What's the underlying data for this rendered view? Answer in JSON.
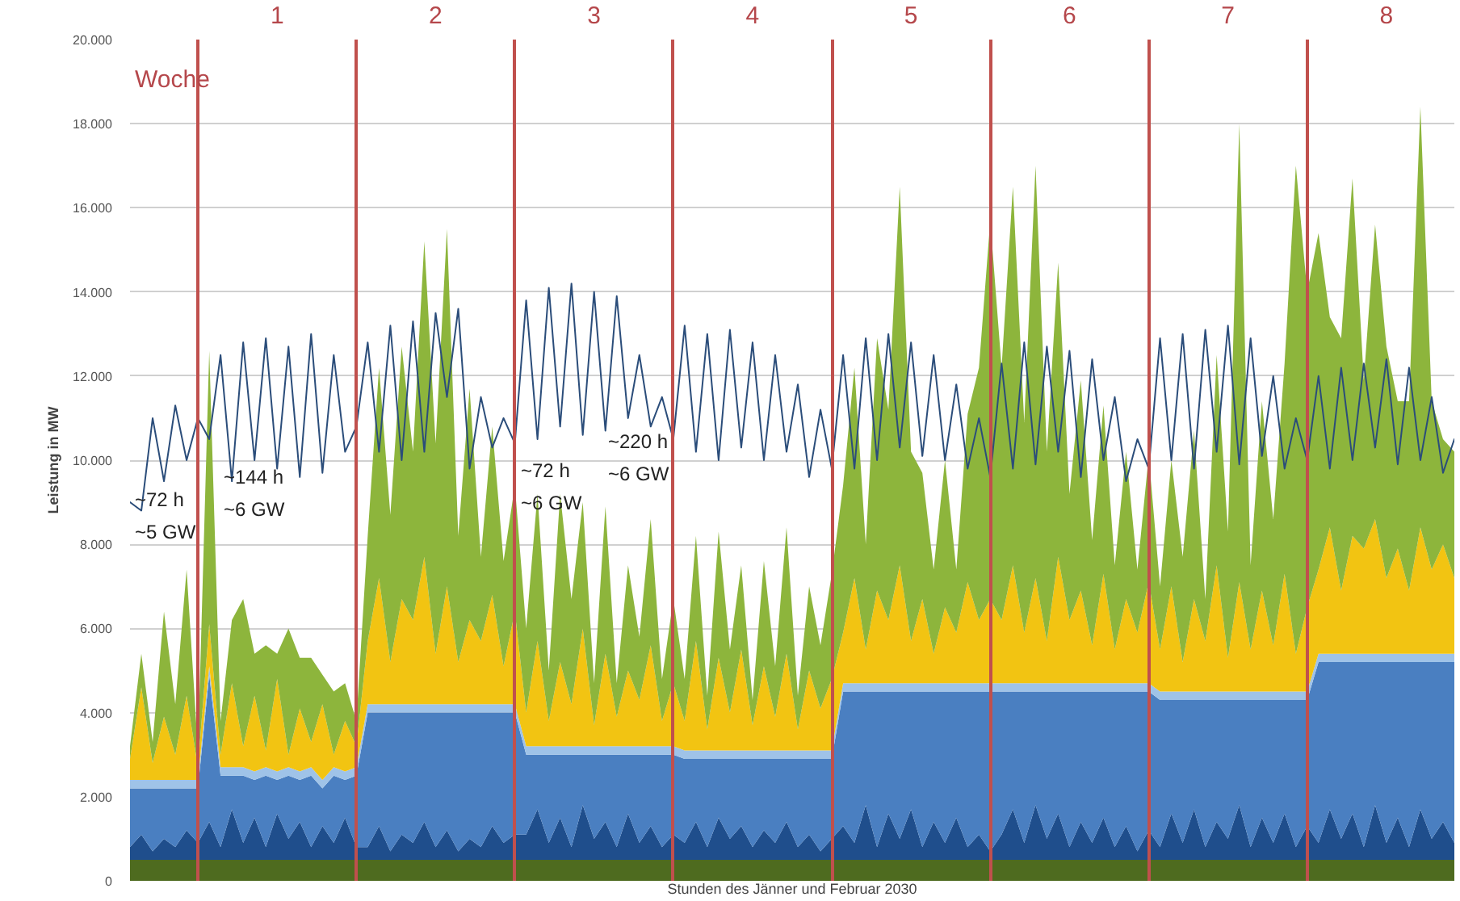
{
  "chart_data": {
    "type": "area",
    "stacked": true,
    "xlabel": "Stunden des Jänner und Februar 2030",
    "ylabel": "Leistung in MW",
    "categories": [
      null,
      null,
      null,
      null,
      null,
      null,
      null,
      null,
      null,
      null,
      null,
      null,
      null,
      "1",
      null,
      null,
      null,
      null,
      null,
      null,
      null,
      null,
      null,
      null,
      null,
      null,
      null,
      "2",
      null,
      null,
      null,
      null,
      null,
      null,
      null,
      null,
      null,
      null,
      null,
      null,
      null,
      "3",
      null,
      null,
      null,
      null,
      null,
      null,
      null,
      null,
      null,
      null,
      null,
      null,
      null,
      "4",
      null,
      null,
      null,
      null,
      null,
      null,
      null,
      null,
      null,
      null,
      null,
      null,
      null,
      "5",
      null,
      null,
      null,
      null,
      null,
      null,
      null,
      null,
      null,
      null,
      null,
      null,
      null,
      "6",
      null,
      null,
      null,
      null,
      null,
      null,
      null,
      null,
      null,
      null,
      null,
      null,
      null,
      "7",
      null,
      null,
      null,
      null,
      null,
      null,
      null,
      null,
      null,
      null,
      null,
      null,
      null,
      "8",
      null,
      null,
      null,
      null,
      null,
      null
    ],
    "ylim": [
      0,
      20000
    ],
    "yticks": [
      {
        "value": 0,
        "label": "0"
      },
      {
        "value": 2000,
        "label": "2.000"
      },
      {
        "value": 4000,
        "label": "4.000"
      },
      {
        "value": 6000,
        "label": "6.000"
      },
      {
        "value": 8000,
        "label": "8.000"
      },
      {
        "value": 10000,
        "label": "10.000"
      },
      {
        "value": 12000,
        "label": "12.000"
      },
      {
        "value": 14000,
        "label": "14.000"
      },
      {
        "value": 16000,
        "label": "16.000"
      },
      {
        "value": 18000,
        "label": "18.000"
      },
      {
        "value": 20000,
        "label": "20.000"
      }
    ],
    "grid": true,
    "series": [
      {
        "color": "#4e6b1f",
        "values": [
          500,
          500,
          500,
          500,
          500,
          500,
          500,
          500,
          500,
          500,
          500,
          500,
          500,
          500,
          500,
          500,
          500,
          500,
          500,
          500,
          500,
          500,
          500,
          500,
          500,
          500,
          500,
          500,
          500,
          500,
          500,
          500,
          500,
          500,
          500,
          500,
          500,
          500,
          500,
          500,
          500,
          500,
          500,
          500,
          500,
          500,
          500,
          500,
          500,
          500,
          500,
          500,
          500,
          500,
          500,
          500,
          500,
          500,
          500,
          500,
          500,
          500,
          500,
          500,
          500,
          500,
          500,
          500,
          500,
          500,
          500,
          500,
          500,
          500,
          500,
          500,
          500,
          500,
          500,
          500,
          500,
          500,
          500,
          500,
          500,
          500,
          500,
          500,
          500,
          500,
          500,
          500,
          500,
          500,
          500,
          500,
          500,
          500,
          500,
          500,
          500,
          500,
          500,
          500,
          500,
          500,
          500,
          500,
          500,
          500,
          500,
          500,
          500,
          500,
          500,
          500,
          500,
          500
        ]
      },
      {
        "color": "#1f4e8c",
        "values": [
          300,
          600,
          200,
          500,
          300,
          700,
          400,
          900,
          300,
          1200,
          400,
          1000,
          300,
          1100,
          500,
          900,
          300,
          800,
          400,
          1000,
          300,
          300,
          800,
          200,
          600,
          400,
          900,
          300,
          700,
          200,
          500,
          300,
          800,
          400,
          600,
          600,
          1200,
          400,
          1000,
          300,
          1300,
          500,
          900,
          300,
          1100,
          400,
          800,
          300,
          600,
          400,
          900,
          300,
          1000,
          500,
          800,
          300,
          700,
          400,
          900,
          300,
          600,
          200,
          500,
          800,
          400,
          1300,
          300,
          1100,
          500,
          1200,
          300,
          900,
          400,
          1000,
          300,
          600,
          200,
          600,
          1200,
          400,
          1300,
          500,
          1100,
          300,
          900,
          400,
          1000,
          300,
          800,
          200,
          700,
          300,
          1100,
          400,
          1200,
          300,
          900,
          500,
          1300,
          300,
          1000,
          400,
          1100,
          300,
          800,
          400,
          1200,
          500,
          1100,
          300,
          1300,
          400,
          1000,
          300,
          1200,
          500,
          900,
          400
        ]
      },
      {
        "color": "#4a7fc1",
        "values": [
          1400,
          1100,
          1500,
          1200,
          1400,
          1000,
          1300,
          3500,
          1700,
          800,
          1600,
          900,
          1700,
          800,
          1500,
          1000,
          1700,
          900,
          1600,
          900,
          1700,
          3200,
          2700,
          3300,
          2900,
          3100,
          2600,
          3200,
          2800,
          3300,
          3000,
          3200,
          2700,
          3100,
          2900,
          1900,
          1300,
          2100,
          1500,
          2200,
          1200,
          2000,
          1600,
          2200,
          1400,
          2100,
          1700,
          2200,
          1900,
          2000,
          1500,
          2100,
          1400,
          1900,
          1600,
          2100,
          1700,
          2000,
          1500,
          2100,
          1800,
          2200,
          1900,
          3200,
          3600,
          2700,
          3700,
          2900,
          3500,
          2800,
          3700,
          3100,
          3600,
          3000,
          3700,
          3400,
          3800,
          3400,
          2800,
          3600,
          2700,
          3500,
          2900,
          3700,
          3100,
          3600,
          3000,
          3700,
          3200,
          3800,
          3300,
          3500,
          2700,
          3400,
          2600,
          3500,
          2900,
          3300,
          2500,
          3500,
          2800,
          3400,
          2700,
          3500,
          3000,
          4300,
          3500,
          4200,
          3600,
          4400,
          3400,
          4300,
          3700,
          4400,
          3500,
          4200,
          3800,
          4300
        ]
      },
      {
        "color": "#9fc3e8",
        "values": [
          200,
          200,
          200,
          200,
          200,
          200,
          200,
          200,
          200,
          200,
          200,
          200,
          200,
          200,
          200,
          200,
          200,
          200,
          200,
          200,
          200,
          200,
          200,
          200,
          200,
          200,
          200,
          200,
          200,
          200,
          200,
          200,
          200,
          200,
          200,
          200,
          200,
          200,
          200,
          200,
          200,
          200,
          200,
          200,
          200,
          200,
          200,
          200,
          200,
          200,
          200,
          200,
          200,
          200,
          200,
          200,
          200,
          200,
          200,
          200,
          200,
          200,
          200,
          200,
          200,
          200,
          200,
          200,
          200,
          200,
          200,
          200,
          200,
          200,
          200,
          200,
          200,
          200,
          200,
          200,
          200,
          200,
          200,
          200,
          200,
          200,
          200,
          200,
          200,
          200,
          200,
          200,
          200,
          200,
          200,
          200,
          200,
          200,
          200,
          200,
          200,
          200,
          200,
          200,
          200,
          200,
          200,
          200,
          200,
          200,
          200,
          200,
          200,
          200,
          200,
          200,
          200,
          200
        ]
      },
      {
        "color": "#f2c412",
        "values": [
          500,
          2200,
          400,
          1500,
          600,
          2000,
          300,
          1000,
          300,
          2000,
          500,
          1800,
          400,
          2200,
          300,
          1500,
          600,
          1800,
          300,
          1200,
          500,
          1500,
          3000,
          1000,
          2500,
          2000,
          3500,
          1200,
          2800,
          1000,
          2000,
          1500,
          2600,
          900,
          2200,
          800,
          2500,
          600,
          2000,
          1000,
          2800,
          500,
          2200,
          700,
          1800,
          1100,
          2400,
          600,
          1500,
          700,
          2600,
          500,
          2200,
          900,
          2400,
          600,
          2000,
          800,
          2300,
          500,
          1900,
          1000,
          1700,
          1200,
          2500,
          800,
          2200,
          1500,
          2800,
          1000,
          2000,
          700,
          1800,
          1200,
          2400,
          1500,
          2000,
          1500,
          2800,
          1200,
          2500,
          1000,
          3000,
          1500,
          2200,
          900,
          2600,
          800,
          2000,
          1200,
          2400,
          1000,
          2500,
          700,
          2200,
          1200,
          3000,
          800,
          2600,
          1000,
          2400,
          1100,
          2800,
          900,
          2000,
          2000,
          3000,
          1500,
          2800,
          2500,
          3200,
          1800,
          2500,
          1500,
          3000,
          2000,
          2600,
          1800
        ]
      },
      {
        "color": "#8db53c",
        "values": [
          300,
          800,
          500,
          2500,
          1200,
          3000,
          400,
          6500,
          800,
          1500,
          3500,
          1000,
          2500,
          600,
          3000,
          1200,
          2000,
          700,
          1500,
          900,
          600,
          2500,
          5000,
          3500,
          6000,
          4000,
          7500,
          5000,
          8500,
          3000,
          5500,
          2000,
          4000,
          2500,
          3000,
          2000,
          3500,
          1200,
          4000,
          2500,
          3000,
          1000,
          3500,
          800,
          2500,
          1500,
          3000,
          1000,
          2000,
          1000,
          2500,
          800,
          3000,
          1500,
          2000,
          600,
          2500,
          1200,
          3000,
          800,
          2000,
          1500,
          2500,
          3500,
          5000,
          2500,
          6000,
          5000,
          9000,
          4500,
          3000,
          2000,
          3500,
          1500,
          4000,
          6000,
          9000,
          6000,
          9000,
          5000,
          9800,
          4500,
          7000,
          3000,
          5000,
          2500,
          4000,
          2000,
          3500,
          1500,
          3000,
          1500,
          3000,
          2500,
          4000,
          1000,
          5000,
          3000,
          10900,
          2000,
          4500,
          3000,
          5000,
          11600,
          7500,
          8000,
          5000,
          6000,
          8500,
          4000,
          7000,
          5500,
          3500,
          4500,
          10000,
          4000,
          2500,
          3000
        ]
      },
      {
        "type": "line",
        "color": "#2b4d7a",
        "values": [
          9000,
          8800,
          11000,
          9500,
          11300,
          10000,
          11000,
          10500,
          12500,
          9500,
          12800,
          10000,
          12900,
          9800,
          12700,
          9600,
          13000,
          9700,
          12500,
          10200,
          10800,
          12800,
          10200,
          13200,
          10000,
          13300,
          10200,
          13500,
          11500,
          13600,
          9800,
          11500,
          10300,
          11000,
          10400,
          13800,
          10500,
          14100,
          10800,
          14200,
          10600,
          14000,
          10700,
          13900,
          11000,
          12500,
          10800,
          11500,
          10500,
          13200,
          10200,
          13000,
          10000,
          13100,
          10300,
          12800,
          10000,
          12500,
          10200,
          11800,
          9600,
          11200,
          9800,
          12500,
          9800,
          12900,
          10000,
          13000,
          10300,
          12800,
          10100,
          12500,
          10000,
          11800,
          9800,
          11000,
          9600,
          12300,
          9800,
          12800,
          9900,
          12700,
          10200,
          12600,
          9600,
          12400,
          10000,
          11500,
          9500,
          10500,
          9800,
          12900,
          10000,
          13000,
          9800,
          13100,
          10200,
          13200,
          9900,
          12900,
          10100,
          12000,
          9800,
          11000,
          10000,
          12000,
          9800,
          12200,
          10000,
          12300,
          10300,
          12400,
          9900,
          12200,
          10000,
          11500,
          9700,
          10500
        ]
      }
    ],
    "annotations": [
      "Woche",
      "~72 h",
      "~5 GW",
      "~144 h",
      "~6 GW",
      "~72 h",
      "~6 GW",
      "~220 h",
      "~6 GW"
    ]
  }
}
